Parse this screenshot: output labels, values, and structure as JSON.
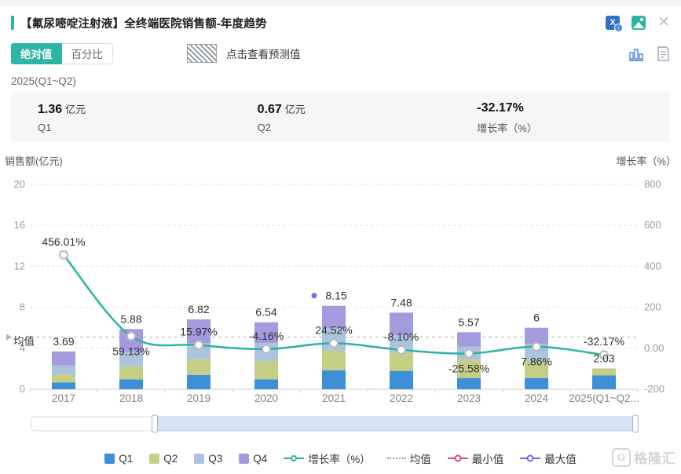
{
  "header": {
    "title": "【氟尿嘧啶注射液】全终端医院销售额-年度趋势",
    "icons": [
      "excel-export-icon",
      "save-image-icon",
      "close-icon"
    ]
  },
  "controls": {
    "absolute_label": "绝对值",
    "percent_label": "百分比",
    "selected": "绝对值",
    "forecast_hint": "点击查看预测值",
    "view_icons": [
      "bar-chart-view-icon",
      "report-view-icon"
    ]
  },
  "period": {
    "label": "2025(Q1~Q2)"
  },
  "stats": [
    {
      "value": "1.36",
      "unit": "亿元",
      "label": "Q1"
    },
    {
      "value": "0.67",
      "unit": "亿元",
      "label": "Q2"
    },
    {
      "value": "-32.17%",
      "unit": "",
      "label": "增长率（%）"
    }
  ],
  "chart_data": {
    "type": "bar",
    "subtype": "stacked-bars-with-growth-line",
    "left_axis": {
      "title": "销售额(亿元)",
      "ticks": [
        20,
        16,
        12,
        8,
        4,
        0
      ],
      "range": [
        0,
        20
      ],
      "grid": "dashed"
    },
    "right_axis": {
      "title": "增长率（%）",
      "tick_labels": [
        "800",
        "600",
        "400",
        "200",
        "0.00",
        "-200"
      ],
      "range": [
        -200,
        800
      ]
    },
    "categories": [
      "2017",
      "2018",
      "2019",
      "2020",
      "2021",
      "2022",
      "2023",
      "2024",
      "2025(Q1~Q2..."
    ],
    "series": [
      {
        "name": "Q1",
        "color": "#3d8fd6",
        "values": [
          0.67,
          0.97,
          1.4,
          0.97,
          1.86,
          1.79,
          1.1,
          1.1,
          1.36
        ]
      },
      {
        "name": "Q2",
        "color": "#c5ce85",
        "values": [
          0.77,
          1.27,
          1.53,
          1.79,
          1.92,
          1.74,
          1.79,
          1.66,
          0.67
        ]
      },
      {
        "name": "Q3",
        "color": "#abc4dd",
        "values": [
          0.89,
          1.41,
          1.59,
          1.76,
          2.18,
          1.76,
          1.27,
          1.66,
          0
        ]
      },
      {
        "name": "Q4",
        "color": "#a49bdf",
        "values": [
          1.36,
          2.23,
          2.3,
          2.02,
          2.19,
          2.19,
          1.41,
          1.58,
          0
        ]
      }
    ],
    "totals_labels": [
      "3.69",
      "5.88",
      "6.82",
      "6.54",
      "8.15",
      "7.48",
      "5.57",
      "6",
      "2.03"
    ],
    "growth_line": {
      "name": "增长率（%）",
      "color": "#2ab3a3",
      "values": [
        456.01,
        59.13,
        15.97,
        -4.16,
        24.52,
        -8.1,
        -25.58,
        7.86,
        -32.17
      ],
      "labels": [
        "456.01%",
        "59.13%",
        "15.97%",
        "-4.16%",
        "24.52%",
        "-8.10%",
        "-25.58%",
        "7.86%",
        "-32.17%"
      ],
      "label_side": [
        "above",
        "below",
        "above",
        "above",
        "above",
        "above",
        "below",
        "below",
        "above"
      ]
    },
    "mean_line": {
      "label": "均值",
      "value": 54.83
    },
    "max_marker": {
      "category_index": 4,
      "value_label": "8.15",
      "color": "#7673e0"
    }
  },
  "legend": {
    "items": [
      {
        "key": "q1",
        "label": "Q1",
        "type": "square",
        "color": "#3d8fd6"
      },
      {
        "key": "q2",
        "label": "Q2",
        "type": "square",
        "color": "#c5ce85"
      },
      {
        "key": "q3",
        "label": "Q3",
        "type": "square",
        "color": "#abc4dd"
      },
      {
        "key": "q4",
        "label": "Q4",
        "type": "square",
        "color": "#a49bdf"
      },
      {
        "key": "growth-rate",
        "label": "增长率（%）",
        "type": "line-circle",
        "color": "#2ab3a3"
      },
      {
        "key": "mean",
        "label": "均值",
        "type": "dashed",
        "color": "#9a9a9a"
      },
      {
        "key": "min",
        "label": "最小值",
        "type": "circle-line",
        "color": "#e5457f"
      },
      {
        "key": "max",
        "label": "最大值",
        "type": "circle-line",
        "color": "#6f6cdd"
      }
    ]
  },
  "watermark": {
    "logo": "gelonghui-logo",
    "text": "格隆汇"
  }
}
